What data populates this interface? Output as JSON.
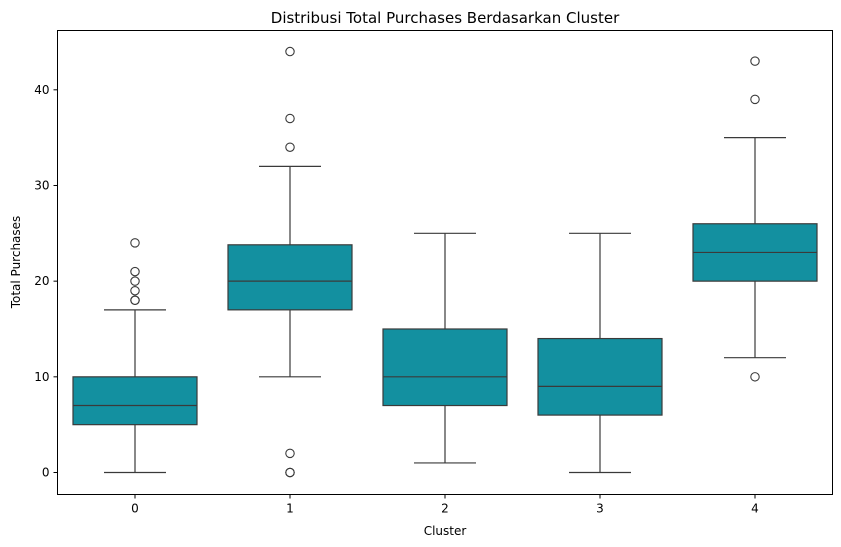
{
  "chart_data": {
    "type": "boxplot",
    "title": "Distribusi Total Purchases Berdasarkan Cluster",
    "xlabel": "Cluster",
    "ylabel": "Total Purchases",
    "categories": [
      "0",
      "1",
      "2",
      "3",
      "4"
    ],
    "ylim": [
      -2.3,
      46.2
    ],
    "yticks": [
      0,
      10,
      20,
      30,
      40
    ],
    "grid": false,
    "box_color": "#1390a0",
    "line_color": "#3a3a3a",
    "boxes": [
      {
        "category": "0",
        "whisker_low": 0,
        "q1": 5,
        "median": 7,
        "q3": 10,
        "whisker_high": 17,
        "outliers": [
          18,
          18,
          19,
          20,
          21,
          24
        ]
      },
      {
        "category": "1",
        "whisker_low": 10,
        "q1": 17,
        "median": 20,
        "q3": 23.8,
        "whisker_high": 32,
        "outliers": [
          0,
          0,
          2,
          34,
          37,
          44
        ]
      },
      {
        "category": "2",
        "whisker_low": 1,
        "q1": 7,
        "median": 10,
        "q3": 15,
        "whisker_high": 25,
        "outliers": []
      },
      {
        "category": "3",
        "whisker_low": 0,
        "q1": 6,
        "median": 9,
        "q3": 14,
        "whisker_high": 25,
        "outliers": []
      },
      {
        "category": "4",
        "whisker_low": 12,
        "q1": 20,
        "median": 23,
        "q3": 26,
        "whisker_high": 35,
        "outliers": [
          10,
          39,
          43
        ]
      }
    ]
  }
}
